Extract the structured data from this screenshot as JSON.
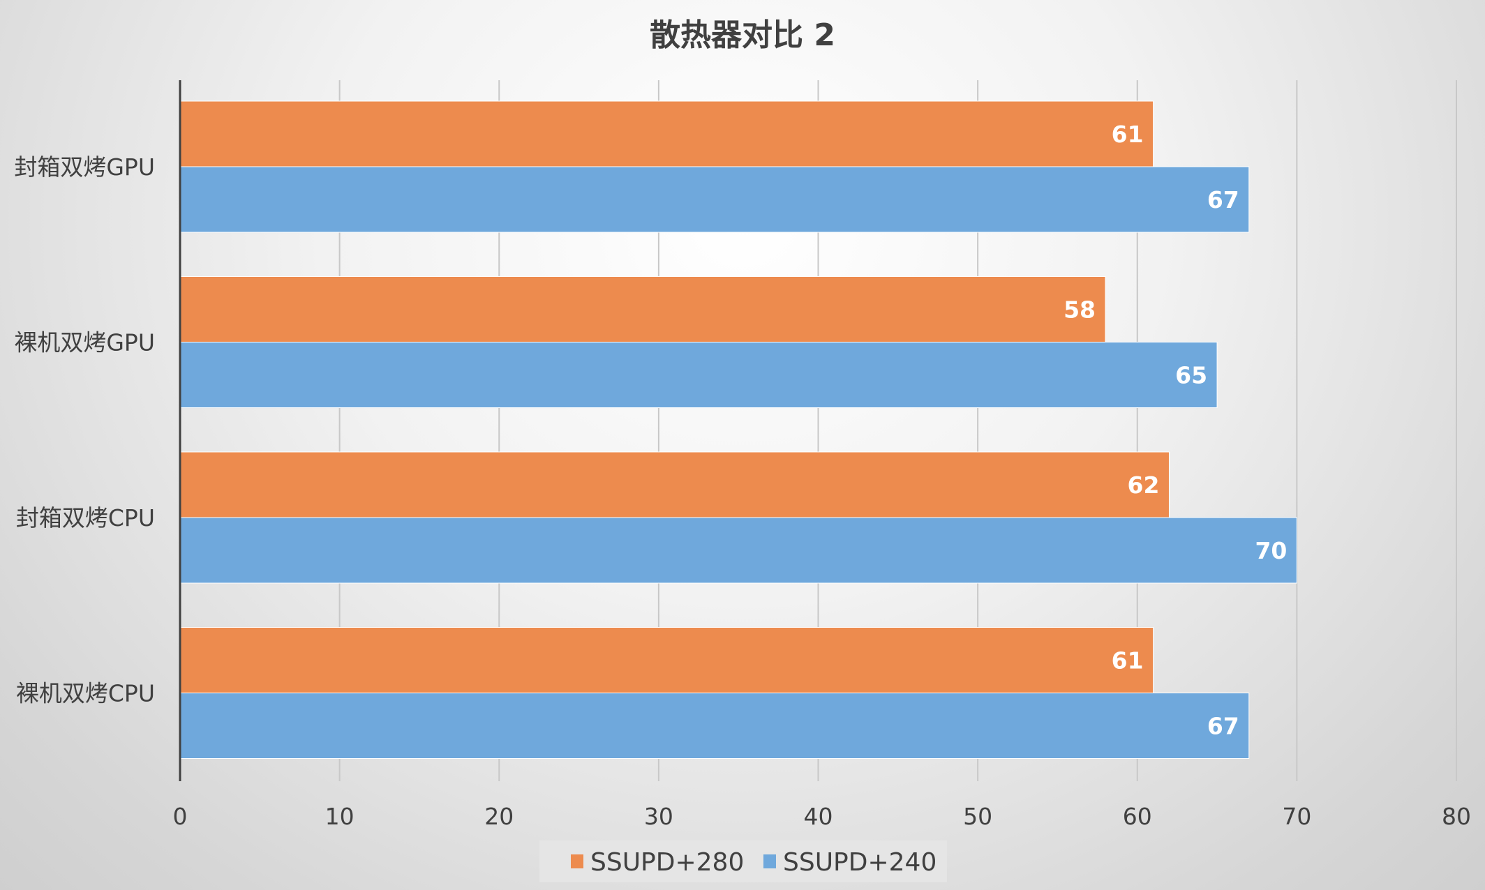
{
  "chart_data": {
    "type": "bar",
    "orientation": "horizontal",
    "title": "散热器对比 2",
    "categories": [
      "封箱双烤GPU",
      "裸机双烤GPU",
      "封箱双烤CPU",
      "裸机双烤CPU"
    ],
    "series": [
      {
        "name": "SSUPD+280",
        "color": "#ED8B4E",
        "values": [
          61,
          58,
          62,
          61
        ]
      },
      {
        "name": "SSUPD+240",
        "color": "#6FA8DC",
        "values": [
          67,
          65,
          70,
          67
        ]
      }
    ],
    "xlim": [
      0,
      80
    ],
    "xticks": [
      "0",
      "10",
      "20",
      "30",
      "40",
      "50",
      "60",
      "70",
      "80"
    ],
    "grid": true,
    "data_labels": true,
    "legend": "bottom"
  }
}
